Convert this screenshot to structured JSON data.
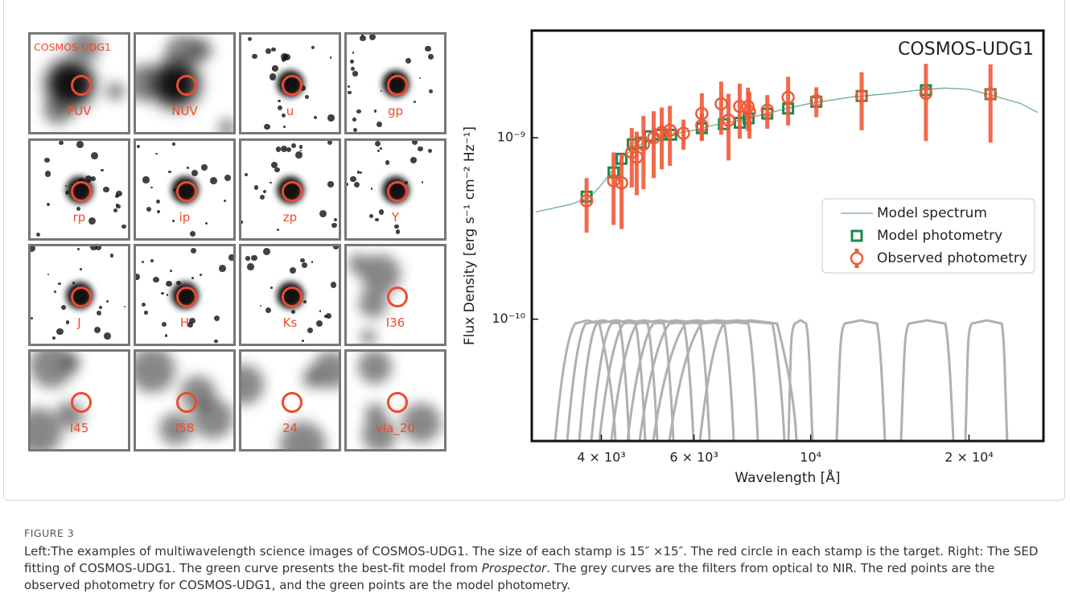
{
  "stamp_title": "COSMOS-UDG1",
  "stamps": [
    "FUV",
    "NUV",
    "u",
    "gp",
    "rp",
    "ip",
    "zp",
    "Y",
    "J",
    "H",
    "Ks",
    "I36",
    "I45",
    "I58",
    "24",
    "vla_20"
  ],
  "chart_data": {
    "type": "scatter",
    "annotation": "COSMOS-UDG1",
    "xlabel": "Wavelength [Å]",
    "ylabel": "Flux Density [erg s⁻¹ cm⁻² Hz⁻¹]",
    "xlog": true,
    "ylog": true,
    "xlim": [
      2950,
      27700
    ],
    "ylim": [
      2.13e-11,
      3.9e-09
    ],
    "xticks": [
      {
        "value": 4000,
        "label": "4 × 10³"
      },
      {
        "value": 6000,
        "label": "6 × 10³"
      },
      {
        "value": 10000,
        "label": "10⁴"
      },
      {
        "value": 20000,
        "label": "2 × 10⁴"
      }
    ],
    "yticks": [
      {
        "value": 1e-10,
        "label": "10⁻¹⁰"
      },
      {
        "value": 1e-09,
        "label": "10⁻⁹"
      }
    ],
    "legend": "center right",
    "series": [
      {
        "name": "Model spectrum",
        "type": "line",
        "color": "#6ab187",
        "x": [
          3000,
          3500,
          3800,
          4000,
          4200,
          4400,
          4600,
          5000,
          5500,
          6000,
          6500,
          7000,
          7500,
          8000,
          9000,
          10000,
          12000,
          14000,
          16000,
          18000,
          20000,
          22000,
          25000,
          27000
        ],
        "values": [
          3.9e-10,
          4.3e-10,
          4.7e-10,
          5.5e-10,
          6.6e-10,
          7.8e-10,
          8.8e-10,
          9.9e-10,
          1.05e-09,
          1.1e-09,
          1.17e-09,
          1.22e-09,
          1.26e-09,
          1.33e-09,
          1.45e-09,
          1.55e-09,
          1.68e-09,
          1.75e-09,
          1.83e-09,
          1.88e-09,
          1.85e-09,
          1.72e-09,
          1.55e-09,
          1.38e-09
        ]
      },
      {
        "name": "Model photometry",
        "type": "scatter",
        "marker": "square",
        "color": "#1a8a4a",
        "x": [
          3750,
          4220,
          4370,
          4590,
          4750,
          4940,
          5150,
          5430,
          6210,
          6840,
          7330,
          7620,
          8270,
          9060,
          10250,
          12500,
          16560,
          21970
        ],
        "values": [
          4.74e-10,
          6.44e-10,
          7.66e-10,
          9.21e-10,
          9.41e-10,
          1.02e-09,
          1.04e-09,
          1.04e-09,
          1.13e-09,
          1.19e-09,
          1.21e-09,
          1.28e-09,
          1.36e-09,
          1.45e-09,
          1.58e-09,
          1.7e-09,
          1.83e-09,
          1.74e-09
        ]
      },
      {
        "name": "Observed photometry",
        "type": "errorbar",
        "marker": "circle",
        "color": "#f05a3a",
        "x": [
          3750,
          4220,
          4370,
          4570,
          4670,
          4810,
          5030,
          5210,
          5400,
          5730,
          6210,
          6210,
          6760,
          6980,
          7330,
          7600,
          7650,
          8270,
          9060,
          10250,
          12500,
          16560,
          21970
        ],
        "values": [
          4.5e-10,
          5.81e-10,
          5.64e-10,
          8.32e-10,
          7.82e-10,
          9.21e-10,
          1e-09,
          1.07e-09,
          1.1e-09,
          1.06e-09,
          1.17e-09,
          1.36e-09,
          1.54e-09,
          1.25e-09,
          1.49e-09,
          1.49e-09,
          1.39e-09,
          1.42e-09,
          1.67e-09,
          1.6e-09,
          1.7e-09,
          1.76e-09,
          1.74e-09
        ],
        "errors": [
          1.5e-10,
          2.5e-10,
          2.5e-10,
          3e-10,
          3e-10,
          4e-10,
          4e-10,
          4e-10,
          4e-10,
          2e-10,
          2e-10,
          4e-10,
          5e-10,
          5e-10,
          5e-10,
          4e-10,
          4e-10,
          3e-10,
          5e-10,
          3e-10,
          6e-10,
          8e-10,
          8e-10
        ]
      }
    ]
  },
  "caption": {
    "label": "FIGURE 3",
    "text_before": "Left:The examples of multiwavelength science images of COSMOS-UDG1. The size of each stamp is 15″ ×15″. The red circle in each stamp is the target. Right: The SED fitting of COSMOS-UDG1. The green curve presents the best-fit model from ",
    "emphasis": "Prospector",
    "text_after": ". The grey curves are the filters from optical to NIR. The red points are the observed photometry for COSMOS-UDG1, and the green points are the model photometry."
  }
}
